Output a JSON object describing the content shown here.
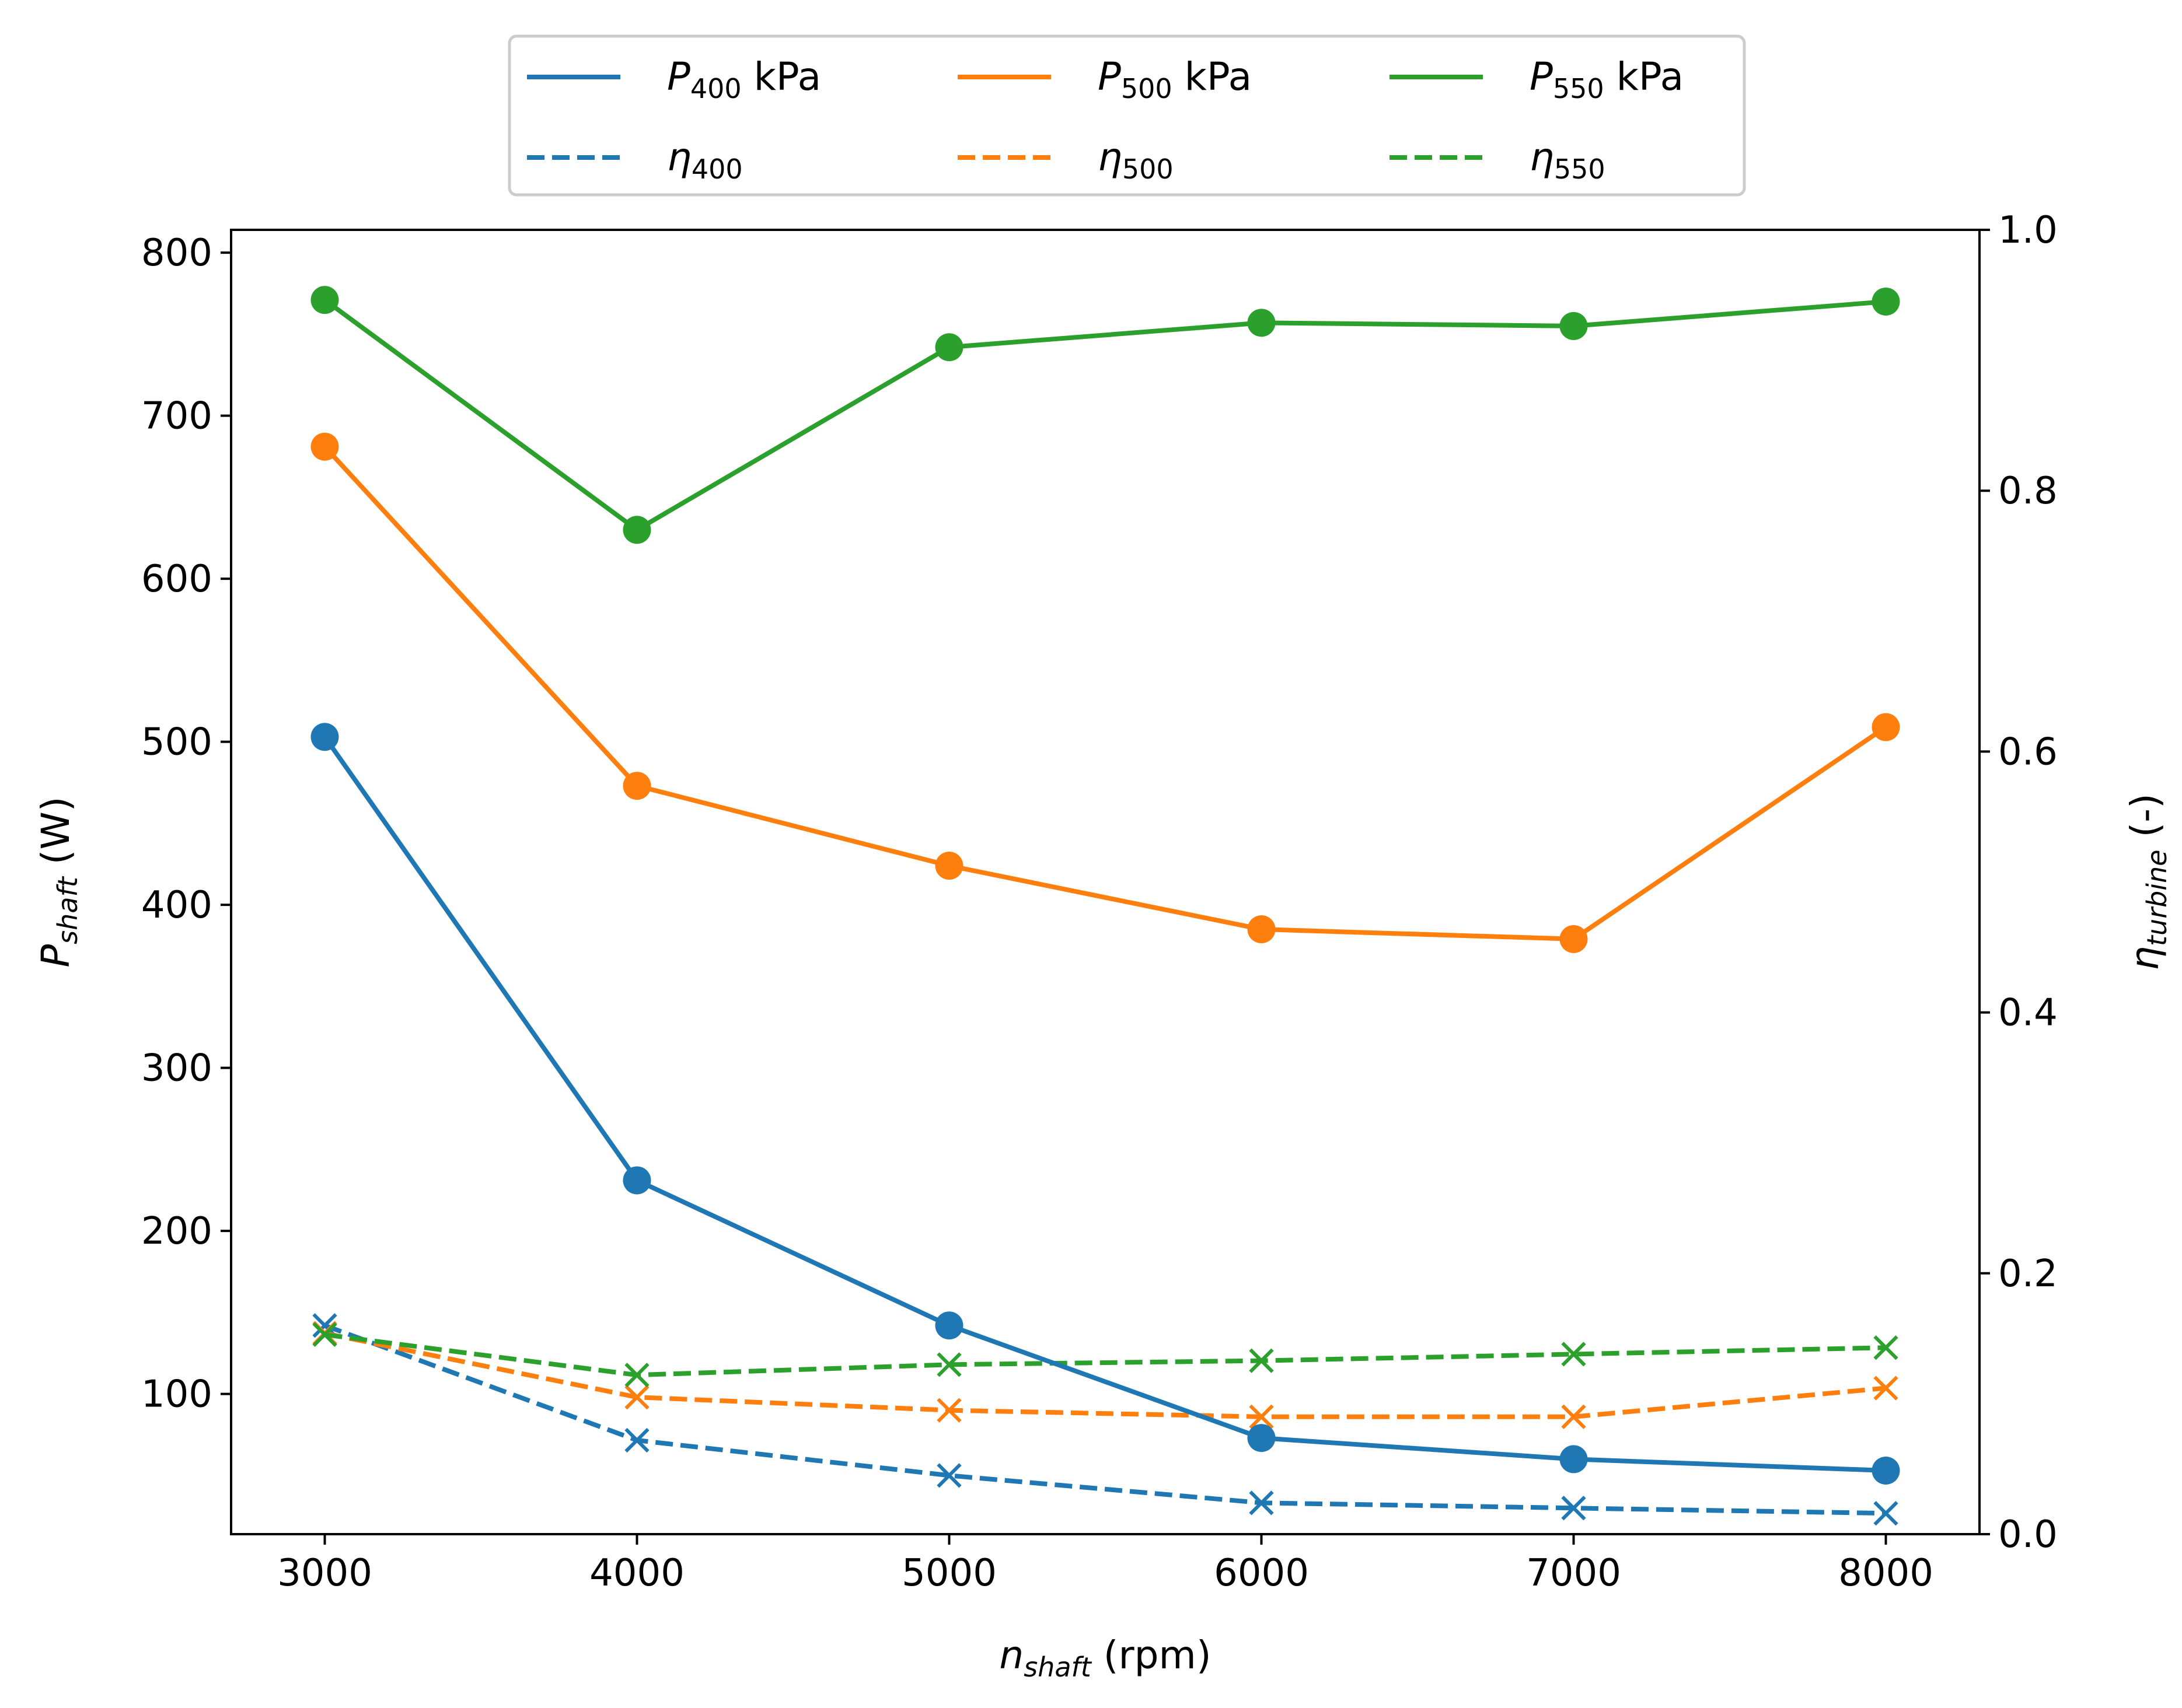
{
  "chart_data": {
    "type": "line",
    "x": [
      3000,
      4000,
      5000,
      6000,
      7000,
      8000
    ],
    "x_axis": {
      "label_main": "n",
      "label_sub": "shaft",
      "label_unit": " (rpm)",
      "lim": [
        2700,
        8300
      ],
      "ticks": [
        3000,
        4000,
        5000,
        6000,
        7000,
        8000
      ],
      "tick_labels": [
        "3000",
        "4000",
        "5000",
        "6000",
        "7000",
        "8000"
      ]
    },
    "y_axis_left": {
      "label_main": "P",
      "label_sub": "shaft",
      "label_unit": " (W)",
      "lim": [
        14,
        814
      ],
      "ticks": [
        100,
        200,
        300,
        400,
        500,
        600,
        700,
        800
      ],
      "tick_labels": [
        "100",
        "200",
        "300",
        "400",
        "500",
        "600",
        "700",
        "800"
      ]
    },
    "y_axis_right": {
      "label_main": "η",
      "label_sub": "turbine",
      "label_unit": " (-)",
      "lim": [
        0,
        1
      ],
      "ticks": [
        0,
        0.2,
        0.4,
        0.6,
        0.8,
        1.0
      ],
      "tick_labels": [
        "0.0",
        "0.2",
        "0.4",
        "0.6",
        "0.8",
        "1.0"
      ]
    },
    "series": [
      {
        "name_main": "P",
        "name_sub": "400",
        "name_suffix": " kPa",
        "axis": "left",
        "style": "solid",
        "marker": "circle",
        "color": "#1f77b4",
        "values": [
          503,
          231,
          142,
          73,
          60,
          53
        ]
      },
      {
        "name_main": "η",
        "name_sub": "400",
        "name_suffix": "",
        "axis": "right",
        "style": "dashed",
        "marker": "x",
        "color": "#1f77b4",
        "values": [
          0.16,
          0.072,
          0.045,
          0.024,
          0.02,
          0.016
        ]
      },
      {
        "name_main": "P",
        "name_sub": "500",
        "name_suffix": " kPa",
        "axis": "left",
        "style": "solid",
        "marker": "circle",
        "color": "#ff7f0e",
        "values": [
          681,
          473,
          424,
          385,
          379,
          509
        ]
      },
      {
        "name_main": "η",
        "name_sub": "500",
        "name_suffix": "",
        "axis": "right",
        "style": "dashed",
        "marker": "x",
        "color": "#ff7f0e",
        "values": [
          0.154,
          0.105,
          0.095,
          0.09,
          0.09,
          0.112
        ]
      },
      {
        "name_main": "P",
        "name_sub": "550",
        "name_suffix": " kPa",
        "axis": "left",
        "style": "solid",
        "marker": "circle",
        "color": "#2ca02c",
        "values": [
          771,
          630,
          742,
          757,
          755,
          770
        ]
      },
      {
        "name_main": "η",
        "name_sub": "550",
        "name_suffix": "",
        "axis": "right",
        "style": "dashed",
        "marker": "x",
        "color": "#2ca02c",
        "values": [
          0.153,
          0.122,
          0.13,
          0.133,
          0.138,
          0.143
        ]
      }
    ],
    "legend": {
      "placement": "top-center",
      "columns": 3
    },
    "grid": false
  }
}
